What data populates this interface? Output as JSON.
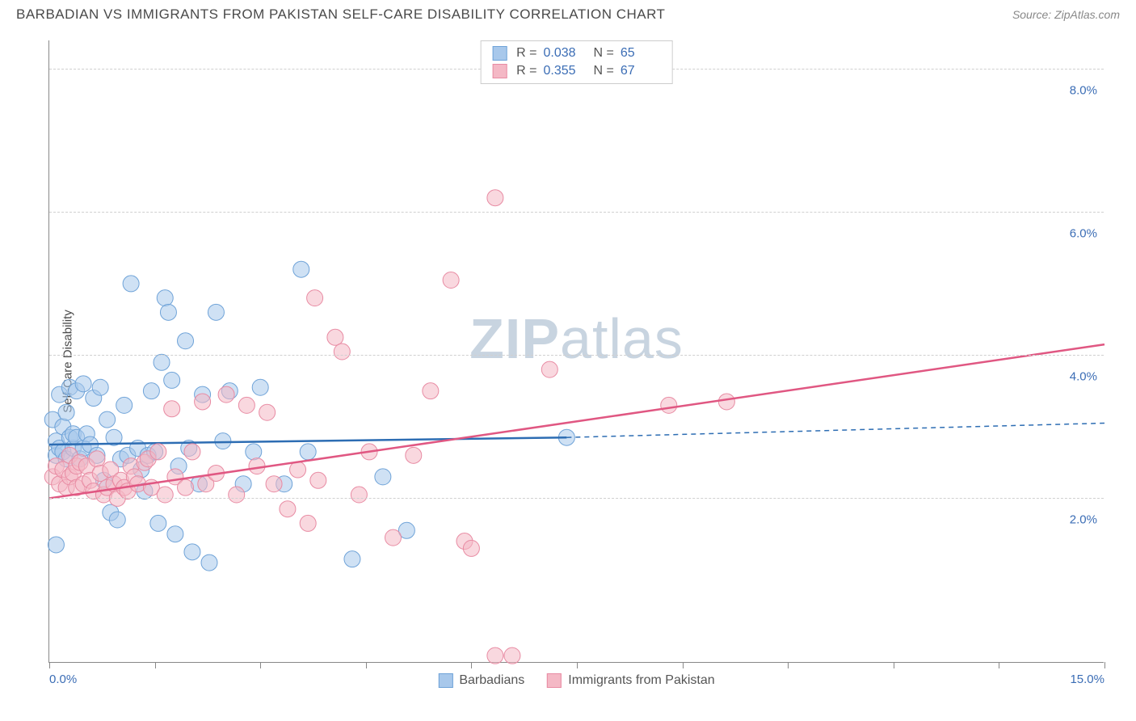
{
  "title": "BARBADIAN VS IMMIGRANTS FROM PAKISTAN SELF-CARE DISABILITY CORRELATION CHART",
  "source_label": "Source:",
  "source_name": "ZipAtlas.com",
  "watermark": {
    "bold": "ZIP",
    "rest": "atlas"
  },
  "chart": {
    "type": "scatter",
    "ylabel": "Self-Care Disability",
    "xlim": [
      0,
      15.5
    ],
    "ylim": [
      0,
      8.7
    ],
    "y_gridlines": [
      2.3,
      4.3,
      6.3,
      8.3
    ],
    "y_tick_labels": [
      {
        "value": 2.0,
        "label": "2.0%"
      },
      {
        "value": 4.0,
        "label": "4.0%"
      },
      {
        "value": 6.0,
        "label": "6.0%"
      },
      {
        "value": 8.0,
        "label": "8.0%"
      }
    ],
    "x_ticks": [
      0,
      1.55,
      3.1,
      4.65,
      6.2,
      7.75,
      9.3,
      10.85,
      12.4,
      13.95,
      15.5
    ],
    "x_tick_labels": [
      {
        "value": 0,
        "label": "0.0%",
        "align": "left"
      },
      {
        "value": 15.5,
        "label": "15.0%",
        "align": "right"
      }
    ],
    "background_color": "#ffffff",
    "grid_color": "#d0d0d0",
    "axis_color": "#888888",
    "label_fontsize": 15,
    "tick_label_color": "#3b6db5",
    "marker_radius": 10,
    "marker_opacity": 0.55,
    "series": [
      {
        "name": "Barbadians",
        "color_fill": "#a8c8eb",
        "color_stroke": "#6fa3d8",
        "r_value": "0.038",
        "n_value": "65",
        "trend": {
          "color": "#2d6db3",
          "width": 2.5,
          "solid": {
            "x1": 0,
            "y1": 3.05,
            "x2": 7.6,
            "y2": 3.15
          },
          "dashed": {
            "x1": 7.6,
            "y1": 3.15,
            "x2": 15.5,
            "y2": 3.35
          }
        },
        "points": [
          [
            0.05,
            3.4
          ],
          [
            0.1,
            1.65
          ],
          [
            0.1,
            2.9
          ],
          [
            0.1,
            3.1
          ],
          [
            0.15,
            3.75
          ],
          [
            0.15,
            3.0
          ],
          [
            0.2,
            2.95
          ],
          [
            0.2,
            3.3
          ],
          [
            0.25,
            2.85
          ],
          [
            0.25,
            3.5
          ],
          [
            0.3,
            3.15
          ],
          [
            0.3,
            3.85
          ],
          [
            0.35,
            3.0
          ],
          [
            0.35,
            3.2
          ],
          [
            0.4,
            3.15
          ],
          [
            0.4,
            3.8
          ],
          [
            0.45,
            2.85
          ],
          [
            0.5,
            3.0
          ],
          [
            0.5,
            3.9
          ],
          [
            0.55,
            3.2
          ],
          [
            0.6,
            3.05
          ],
          [
            0.65,
            3.7
          ],
          [
            0.7,
            2.9
          ],
          [
            0.75,
            3.85
          ],
          [
            0.8,
            2.55
          ],
          [
            0.85,
            3.4
          ],
          [
            0.9,
            2.1
          ],
          [
            0.95,
            3.15
          ],
          [
            1.0,
            2.0
          ],
          [
            1.05,
            2.85
          ],
          [
            1.1,
            3.6
          ],
          [
            1.15,
            2.9
          ],
          [
            1.2,
            5.3
          ],
          [
            1.3,
            3.0
          ],
          [
            1.35,
            2.7
          ],
          [
            1.4,
            2.4
          ],
          [
            1.45,
            2.9
          ],
          [
            1.5,
            3.8
          ],
          [
            1.55,
            2.95
          ],
          [
            1.6,
            1.95
          ],
          [
            1.65,
            4.2
          ],
          [
            1.7,
            5.1
          ],
          [
            1.75,
            4.9
          ],
          [
            1.8,
            3.95
          ],
          [
            1.85,
            1.8
          ],
          [
            1.9,
            2.75
          ],
          [
            2.0,
            4.5
          ],
          [
            2.05,
            3.0
          ],
          [
            2.1,
            1.55
          ],
          [
            2.2,
            2.5
          ],
          [
            2.25,
            3.75
          ],
          [
            2.35,
            1.4
          ],
          [
            2.45,
            4.9
          ],
          [
            2.55,
            3.1
          ],
          [
            2.65,
            3.8
          ],
          [
            2.85,
            2.5
          ],
          [
            3.0,
            2.95
          ],
          [
            3.1,
            3.85
          ],
          [
            3.45,
            2.5
          ],
          [
            3.7,
            5.5
          ],
          [
            3.8,
            2.95
          ],
          [
            4.45,
            1.45
          ],
          [
            4.9,
            2.6
          ],
          [
            5.25,
            1.85
          ],
          [
            7.6,
            3.15
          ]
        ]
      },
      {
        "name": "Immigrants from Pakistan",
        "color_fill": "#f4b8c5",
        "color_stroke": "#e88ba3",
        "r_value": "0.355",
        "n_value": "67",
        "trend": {
          "color": "#e05782",
          "width": 2.5,
          "solid": {
            "x1": 0,
            "y1": 2.3,
            "x2": 15.5,
            "y2": 4.45
          },
          "dashed": null
        },
        "points": [
          [
            0.05,
            2.6
          ],
          [
            0.1,
            2.75
          ],
          [
            0.15,
            2.5
          ],
          [
            0.2,
            2.7
          ],
          [
            0.25,
            2.45
          ],
          [
            0.3,
            2.9
          ],
          [
            0.3,
            2.6
          ],
          [
            0.35,
            2.65
          ],
          [
            0.4,
            2.75
          ],
          [
            0.4,
            2.45
          ],
          [
            0.45,
            2.8
          ],
          [
            0.5,
            2.5
          ],
          [
            0.55,
            2.75
          ],
          [
            0.6,
            2.55
          ],
          [
            0.65,
            2.4
          ],
          [
            0.7,
            2.85
          ],
          [
            0.75,
            2.65
          ],
          [
            0.8,
            2.35
          ],
          [
            0.85,
            2.45
          ],
          [
            0.9,
            2.7
          ],
          [
            0.95,
            2.5
          ],
          [
            1.0,
            2.3
          ],
          [
            1.05,
            2.55
          ],
          [
            1.1,
            2.45
          ],
          [
            1.15,
            2.4
          ],
          [
            1.2,
            2.75
          ],
          [
            1.25,
            2.6
          ],
          [
            1.3,
            2.5
          ],
          [
            1.4,
            2.8
          ],
          [
            1.45,
            2.85
          ],
          [
            1.5,
            2.45
          ],
          [
            1.6,
            2.95
          ],
          [
            1.7,
            2.35
          ],
          [
            1.8,
            3.55
          ],
          [
            1.85,
            2.6
          ],
          [
            2.0,
            2.45
          ],
          [
            2.1,
            2.95
          ],
          [
            2.25,
            3.65
          ],
          [
            2.3,
            2.5
          ],
          [
            2.45,
            2.65
          ],
          [
            2.6,
            3.75
          ],
          [
            2.75,
            2.35
          ],
          [
            2.9,
            3.6
          ],
          [
            3.05,
            2.75
          ],
          [
            3.2,
            3.5
          ],
          [
            3.3,
            2.5
          ],
          [
            3.5,
            2.15
          ],
          [
            3.65,
            2.7
          ],
          [
            3.8,
            1.95
          ],
          [
            3.9,
            5.1
          ],
          [
            3.95,
            2.55
          ],
          [
            4.2,
            4.55
          ],
          [
            4.3,
            4.35
          ],
          [
            4.55,
            2.35
          ],
          [
            4.7,
            2.95
          ],
          [
            5.05,
            1.75
          ],
          [
            5.35,
            2.9
          ],
          [
            5.6,
            3.8
          ],
          [
            5.9,
            5.35
          ],
          [
            6.1,
            1.7
          ],
          [
            6.2,
            1.6
          ],
          [
            6.55,
            6.5
          ],
          [
            6.8,
            0.1
          ],
          [
            7.35,
            4.1
          ],
          [
            9.1,
            3.6
          ],
          [
            9.95,
            3.65
          ],
          [
            6.55,
            0.1
          ]
        ]
      }
    ]
  },
  "legend_top": {
    "r_label": "R =",
    "n_label": "N ="
  }
}
